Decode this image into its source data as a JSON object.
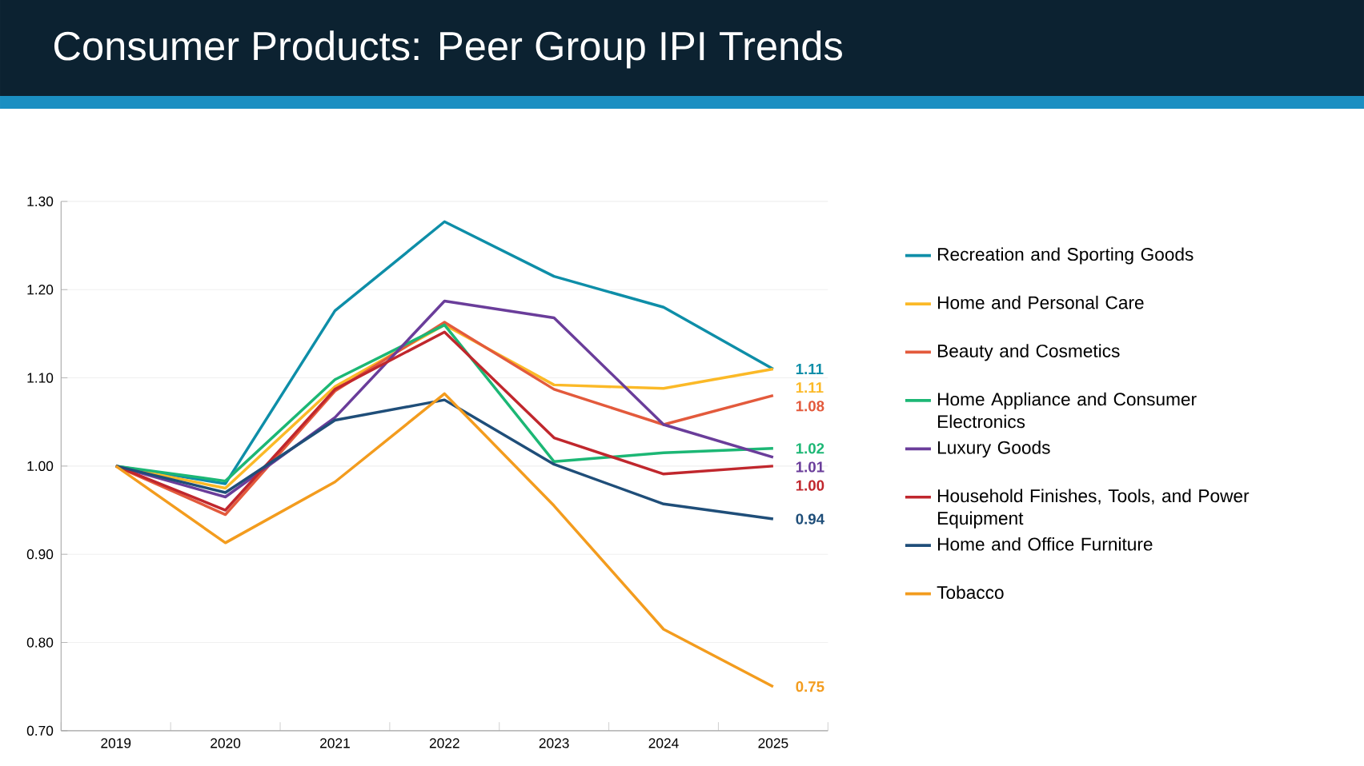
{
  "chart_data": {
    "type": "line",
    "title": "Consumer Products: Peer Group IPI Trends",
    "categories": [
      "2019",
      "2020",
      "2021",
      "2022",
      "2023",
      "2024",
      "2025"
    ],
    "ylim": [
      0.7,
      1.3
    ],
    "yticks": [
      {
        "value": 0.7,
        "label": "0.70"
      },
      {
        "value": 0.8,
        "label": "0.80"
      },
      {
        "value": 0.9,
        "label": "0.90"
      },
      {
        "value": 1.0,
        "label": "1.00"
      },
      {
        "value": 1.1,
        "label": "1.10"
      },
      {
        "value": 1.2,
        "label": "1.20"
      },
      {
        "value": 1.3,
        "label": "1.30"
      }
    ],
    "grid": "y",
    "legend": "right",
    "series": [
      {
        "name": "Recreation and Sporting Goods",
        "color": "#0e8ea8",
        "values": [
          1.0,
          0.98,
          1.176,
          1.277,
          1.215,
          1.18,
          1.11
        ],
        "value_labels": [
          null,
          null,
          null,
          null,
          null,
          null,
          "1.11"
        ]
      },
      {
        "name": "Home and Personal Care",
        "color": "#fbb927",
        "values": [
          1.0,
          0.975,
          1.09,
          1.16,
          1.092,
          1.088,
          1.11
        ],
        "value_labels": [
          null,
          null,
          null,
          null,
          null,
          null,
          "1.11"
        ]
      },
      {
        "name": "Beauty and Cosmetics",
        "color": "#e35a3c",
        "values": [
          1.0,
          0.945,
          1.085,
          1.163,
          1.087,
          1.047,
          1.08
        ],
        "value_labels": [
          null,
          null,
          null,
          null,
          null,
          null,
          "1.08"
        ]
      },
      {
        "name": "Home Appliance and Consumer Electronics",
        "color": "#1cb775",
        "values": [
          1.0,
          0.983,
          1.098,
          1.16,
          1.005,
          1.015,
          1.02
        ],
        "value_labels": [
          null,
          null,
          null,
          null,
          null,
          null,
          "1.02"
        ]
      },
      {
        "name": "Luxury Goods",
        "color": "#6a3d9a",
        "values": [
          1.0,
          0.965,
          1.055,
          1.187,
          1.168,
          1.047,
          1.01
        ],
        "value_labels": [
          null,
          null,
          null,
          null,
          null,
          null,
          "1.01"
        ]
      },
      {
        "name": "Household Finishes, Tools, and Power Equipment",
        "color": "#c0272d",
        "values": [
          1.0,
          0.95,
          1.087,
          1.152,
          1.032,
          0.991,
          1.0
        ],
        "value_labels": [
          null,
          null,
          null,
          null,
          null,
          null,
          "1.00"
        ]
      },
      {
        "name": "Home and Office Furniture",
        "color": "#1f4e79",
        "values": [
          1.0,
          0.97,
          1.052,
          1.075,
          1.002,
          0.957,
          0.94
        ],
        "value_labels": [
          null,
          null,
          null,
          null,
          null,
          null,
          "0.94"
        ]
      },
      {
        "name": "Tobacco",
        "color": "#f39c1e",
        "values": [
          1.0,
          0.913,
          0.982,
          1.082,
          0.955,
          0.815,
          0.75
        ],
        "value_labels": [
          null,
          null,
          null,
          null,
          null,
          null,
          "0.75"
        ]
      }
    ]
  }
}
